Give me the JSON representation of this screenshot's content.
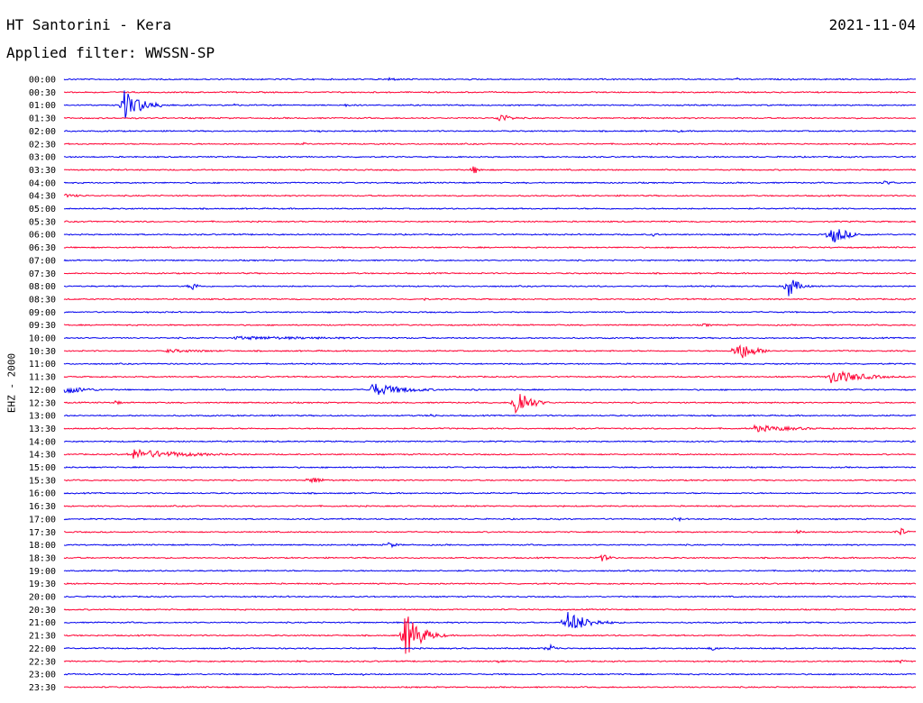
{
  "header": {
    "station": "HT Santorini - Kera",
    "date": "2021-11-04",
    "filter": "Applied filter: WWSSN-SP"
  },
  "chart_data": {
    "type": "line",
    "title": "HT Santorini - Kera",
    "subtitle": "Applied filter: WWSSN-SP",
    "ylabel": "EHZ - 2000",
    "colors": [
      "#0000ee",
      "#ff0033"
    ],
    "rows": [
      "00:00",
      "00:30",
      "01:00",
      "01:30",
      "02:00",
      "02:30",
      "03:00",
      "03:30",
      "04:00",
      "04:30",
      "05:00",
      "05:30",
      "06:00",
      "06:30",
      "07:00",
      "07:30",
      "08:00",
      "08:30",
      "09:00",
      "09:30",
      "10:00",
      "10:30",
      "11:00",
      "11:30",
      "12:00",
      "12:30",
      "13:00",
      "13:30",
      "14:00",
      "14:30",
      "15:00",
      "15:30",
      "16:00",
      "16:30",
      "17:00",
      "17:30",
      "18:00",
      "18:30",
      "19:00",
      "19:30",
      "20:00",
      "20:30",
      "21:00",
      "21:30",
      "22:00",
      "22:30",
      "23:00",
      "23:30"
    ],
    "events": [
      {
        "row": 0,
        "t": 0.38,
        "amp": 3,
        "dur": 0.03
      },
      {
        "row": 0,
        "t": 0.79,
        "amp": 2,
        "dur": 0.02
      },
      {
        "row": 2,
        "t": 0.07,
        "amp": 18,
        "dur": 0.06
      },
      {
        "row": 2,
        "t": 0.2,
        "amp": 2,
        "dur": 0.02
      },
      {
        "row": 2,
        "t": 0.33,
        "amp": 2,
        "dur": 0.02
      },
      {
        "row": 3,
        "t": 0.51,
        "amp": 6,
        "dur": 0.04
      },
      {
        "row": 4,
        "t": 0.3,
        "amp": 2,
        "dur": 0.02
      },
      {
        "row": 4,
        "t": 0.72,
        "amp": 1.5,
        "dur": 0.04
      },
      {
        "row": 5,
        "t": 0.28,
        "amp": 2,
        "dur": 0.02
      },
      {
        "row": 7,
        "t": 0.48,
        "amp": 6,
        "dur": 0.02
      },
      {
        "row": 8,
        "t": 0.96,
        "amp": 3,
        "dur": 0.04
      },
      {
        "row": 9,
        "t": 0.0,
        "amp": 2,
        "dur": 0.08
      },
      {
        "row": 12,
        "t": 0.69,
        "amp": 3,
        "dur": 0.02
      },
      {
        "row": 12,
        "t": 0.9,
        "amp": 12,
        "dur": 0.05
      },
      {
        "row": 16,
        "t": 0.15,
        "amp": 6,
        "dur": 0.02
      },
      {
        "row": 16,
        "t": 0.85,
        "amp": 14,
        "dur": 0.03
      },
      {
        "row": 17,
        "t": 0.42,
        "amp": 2,
        "dur": 0.03
      },
      {
        "row": 19,
        "t": 0.75,
        "amp": 2,
        "dur": 0.04
      },
      {
        "row": 20,
        "t": 0.2,
        "amp": 2,
        "dur": 0.5
      },
      {
        "row": 21,
        "t": 0.12,
        "amp": 2,
        "dur": 0.2
      },
      {
        "row": 21,
        "t": 0.79,
        "amp": 13,
        "dur": 0.05
      },
      {
        "row": 23,
        "t": 0.9,
        "amp": 9,
        "dur": 0.1
      },
      {
        "row": 24,
        "t": 0.0,
        "amp": 5,
        "dur": 0.08
      },
      {
        "row": 24,
        "t": 0.36,
        "amp": 8,
        "dur": 0.11
      },
      {
        "row": 24,
        "t": 0.48,
        "amp": 2,
        "dur": 0.03
      },
      {
        "row": 25,
        "t": 0.53,
        "amp": 22,
        "dur": 0.04
      },
      {
        "row": 25,
        "t": 0.06,
        "amp": 3,
        "dur": 0.02
      },
      {
        "row": 26,
        "t": 0.43,
        "amp": 3,
        "dur": 0.02
      },
      {
        "row": 27,
        "t": 0.81,
        "amp": 4,
        "dur": 0.15
      },
      {
        "row": 29,
        "t": 0.08,
        "amp": 6,
        "dur": 0.18
      },
      {
        "row": 31,
        "t": 0.29,
        "amp": 6,
        "dur": 0.03
      },
      {
        "row": 34,
        "t": 0.72,
        "amp": 5,
        "dur": 0.01
      },
      {
        "row": 35,
        "t": 0.86,
        "amp": 3,
        "dur": 0.02
      },
      {
        "row": 35,
        "t": 0.98,
        "amp": 7,
        "dur": 0.02
      },
      {
        "row": 36,
        "t": 0.38,
        "amp": 4,
        "dur": 0.03
      },
      {
        "row": 37,
        "t": 0.63,
        "amp": 5,
        "dur": 0.03
      },
      {
        "row": 38,
        "t": 0.59,
        "amp": 2,
        "dur": 0.01
      },
      {
        "row": 42,
        "t": 0.59,
        "amp": 13,
        "dur": 0.07
      },
      {
        "row": 42,
        "t": 0.85,
        "amp": 2,
        "dur": 0.01
      },
      {
        "row": 43,
        "t": 0.4,
        "amp": 28,
        "dur": 0.05
      },
      {
        "row": 44,
        "t": 0.57,
        "amp": 6,
        "dur": 0.02
      },
      {
        "row": 44,
        "t": 0.76,
        "amp": 4,
        "dur": 0.02
      },
      {
        "row": 45,
        "t": 0.27,
        "amp": 2,
        "dur": 0.02
      },
      {
        "row": 45,
        "t": 0.51,
        "amp": 3,
        "dur": 0.02
      },
      {
        "row": 45,
        "t": 0.98,
        "amp": 3,
        "dur": 0.02
      },
      {
        "row": 46,
        "t": 0.13,
        "amp": 2,
        "dur": 0.02
      },
      {
        "row": 46,
        "t": 0.35,
        "amp": 2,
        "dur": 0.02
      }
    ]
  }
}
